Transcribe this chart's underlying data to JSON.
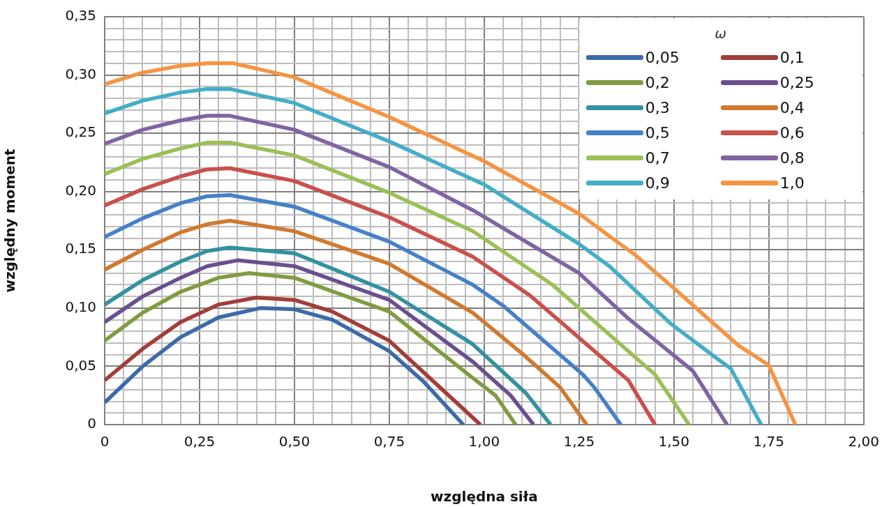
{
  "chart_data": {
    "type": "line",
    "xlabel": "względna siła",
    "ylabel": "względny moment",
    "legend_title": "ω",
    "legend": "top right",
    "grid": true,
    "marker": "none",
    "line_style": "solid",
    "xlim": [
      0,
      2
    ],
    "ylim": [
      0,
      0.35
    ],
    "xticks": [
      {
        "value": 0,
        "label": "0"
      },
      {
        "value": 0.05,
        "label": null
      },
      {
        "value": 0.1,
        "label": null
      },
      {
        "value": 0.15,
        "label": null
      },
      {
        "value": 0.2,
        "label": null
      },
      {
        "value": 0.25,
        "label": "0,25"
      },
      {
        "value": 0.3,
        "label": null
      },
      {
        "value": 0.35,
        "label": null
      },
      {
        "value": 0.4,
        "label": null
      },
      {
        "value": 0.45,
        "label": null
      },
      {
        "value": 0.5,
        "label": "0,50"
      },
      {
        "value": 0.55,
        "label": null
      },
      {
        "value": 0.6,
        "label": null
      },
      {
        "value": 0.65,
        "label": null
      },
      {
        "value": 0.7,
        "label": null
      },
      {
        "value": 0.75,
        "label": "0,75"
      },
      {
        "value": 0.8,
        "label": null
      },
      {
        "value": 0.85,
        "label": null
      },
      {
        "value": 0.9,
        "label": null
      },
      {
        "value": 0.95,
        "label": null
      },
      {
        "value": 1,
        "label": "1,00"
      },
      {
        "value": 1.05,
        "label": null
      },
      {
        "value": 1.1,
        "label": null
      },
      {
        "value": 1.15,
        "label": null
      },
      {
        "value": 1.2,
        "label": null
      },
      {
        "value": 1.25,
        "label": "1,25"
      },
      {
        "value": 1.3,
        "label": null
      },
      {
        "value": 1.35,
        "label": null
      },
      {
        "value": 1.4,
        "label": null
      },
      {
        "value": 1.45,
        "label": null
      },
      {
        "value": 1.5,
        "label": "1,50"
      },
      {
        "value": 1.55,
        "label": null
      },
      {
        "value": 1.6,
        "label": null
      },
      {
        "value": 1.65,
        "label": null
      },
      {
        "value": 1.7,
        "label": null
      },
      {
        "value": 1.75,
        "label": "1,75"
      },
      {
        "value": 1.8,
        "label": null
      },
      {
        "value": 1.85,
        "label": null
      },
      {
        "value": 1.9,
        "label": null
      },
      {
        "value": 1.95,
        "label": null
      },
      {
        "value": 2,
        "label": "2,00"
      }
    ],
    "yticks": [
      {
        "value": 0,
        "label": "0"
      },
      {
        "value": 0.01,
        "label": null
      },
      {
        "value": 0.02,
        "label": null
      },
      {
        "value": 0.03,
        "label": null
      },
      {
        "value": 0.04,
        "label": null
      },
      {
        "value": 0.05,
        "label": "0,05"
      },
      {
        "value": 0.06,
        "label": null
      },
      {
        "value": 0.07,
        "label": null
      },
      {
        "value": 0.08,
        "label": null
      },
      {
        "value": 0.09,
        "label": null
      },
      {
        "value": 0.1,
        "label": "0,10"
      },
      {
        "value": 0.11,
        "label": null
      },
      {
        "value": 0.12,
        "label": null
      },
      {
        "value": 0.13,
        "label": null
      },
      {
        "value": 0.14,
        "label": null
      },
      {
        "value": 0.15,
        "label": "0,15"
      },
      {
        "value": 0.16,
        "label": null
      },
      {
        "value": 0.17,
        "label": null
      },
      {
        "value": 0.18,
        "label": null
      },
      {
        "value": 0.19,
        "label": null
      },
      {
        "value": 0.2,
        "label": "0,20"
      },
      {
        "value": 0.21,
        "label": null
      },
      {
        "value": 0.22,
        "label": null
      },
      {
        "value": 0.23,
        "label": null
      },
      {
        "value": 0.24,
        "label": null
      },
      {
        "value": 0.25,
        "label": "0,25"
      },
      {
        "value": 0.26,
        "label": null
      },
      {
        "value": 0.27,
        "label": null
      },
      {
        "value": 0.28,
        "label": null
      },
      {
        "value": 0.29,
        "label": null
      },
      {
        "value": 0.3,
        "label": "0,30"
      },
      {
        "value": 0.31,
        "label": null
      },
      {
        "value": 0.32,
        "label": null
      },
      {
        "value": 0.33,
        "label": null
      },
      {
        "value": 0.34,
        "label": null
      },
      {
        "value": 0.35,
        "label": "0,35"
      }
    ],
    "series": [
      {
        "name": "0,05",
        "color": "#3d6aa8",
        "x": [
          0,
          0.1,
          0.2,
          0.3,
          0.41,
          0.5,
          0.6,
          0.75,
          0.84,
          0.945
        ],
        "values": [
          0.019,
          0.05,
          0.075,
          0.092,
          0.1,
          0.099,
          0.09,
          0.063,
          0.037,
          0
        ]
      },
      {
        "name": "0,1",
        "color": "#a33d3a",
        "x": [
          0,
          0.1,
          0.2,
          0.3,
          0.4,
          0.5,
          0.6,
          0.75,
          0.9,
          0.99
        ],
        "values": [
          0.038,
          0.065,
          0.088,
          0.103,
          0.109,
          0.107,
          0.097,
          0.072,
          0.027,
          0
        ]
      },
      {
        "name": "0,2",
        "color": "#7f9c3f",
        "x": [
          0,
          0.1,
          0.2,
          0.3,
          0.38,
          0.5,
          0.75,
          0.97,
          1.03,
          1.083
        ],
        "values": [
          0.072,
          0.096,
          0.114,
          0.126,
          0.13,
          0.126,
          0.097,
          0.04,
          0.025,
          0
        ]
      },
      {
        "name": "0,25",
        "color": "#6a4f8f",
        "x": [
          0,
          0.1,
          0.2,
          0.27,
          0.35,
          0.5,
          0.75,
          0.97,
          1.07,
          1.13
        ],
        "values": [
          0.088,
          0.11,
          0.126,
          0.136,
          0.141,
          0.136,
          0.107,
          0.054,
          0.025,
          0
        ]
      },
      {
        "name": "0,3",
        "color": "#34919f",
        "x": [
          0,
          0.1,
          0.2,
          0.27,
          0.33,
          0.5,
          0.75,
          0.97,
          1.11,
          1.175
        ],
        "values": [
          0.103,
          0.124,
          0.14,
          0.149,
          0.152,
          0.147,
          0.114,
          0.069,
          0.027,
          0
        ]
      },
      {
        "name": "0,4",
        "color": "#d07a2e",
        "x": [
          0,
          0.1,
          0.2,
          0.27,
          0.33,
          0.5,
          0.75,
          0.97,
          1.1,
          1.2,
          1.27
        ],
        "values": [
          0.133,
          0.15,
          0.165,
          0.172,
          0.175,
          0.166,
          0.138,
          0.096,
          0.061,
          0.032,
          0
        ]
      },
      {
        "name": "0,5",
        "color": "#4680c8",
        "x": [
          0,
          0.1,
          0.2,
          0.27,
          0.33,
          0.5,
          0.75,
          0.97,
          1.05,
          1.26,
          1.29,
          1.36
        ],
        "values": [
          0.161,
          0.177,
          0.19,
          0.196,
          0.197,
          0.187,
          0.157,
          0.12,
          0.102,
          0.043,
          0.032,
          0
        ]
      },
      {
        "name": "0,6",
        "color": "#c9504c",
        "x": [
          0,
          0.1,
          0.2,
          0.27,
          0.33,
          0.5,
          0.75,
          0.97,
          1.12,
          1.33,
          1.38,
          1.45
        ],
        "values": [
          0.188,
          0.202,
          0.213,
          0.219,
          0.22,
          0.209,
          0.178,
          0.144,
          0.111,
          0.052,
          0.038,
          0
        ]
      },
      {
        "name": "0,7",
        "color": "#9bc057",
        "x": [
          0,
          0.1,
          0.2,
          0.27,
          0.33,
          0.5,
          0.75,
          0.97,
          1.18,
          1.25,
          1.45,
          1.54
        ],
        "values": [
          0.215,
          0.228,
          0.237,
          0.242,
          0.242,
          0.231,
          0.199,
          0.166,
          0.12,
          0.1,
          0.043,
          0
        ]
      },
      {
        "name": "0,8",
        "color": "#8064a2",
        "x": [
          0,
          0.1,
          0.2,
          0.27,
          0.33,
          0.5,
          0.75,
          0.97,
          1.25,
          1.38,
          1.52,
          1.55,
          1.64
        ],
        "values": [
          0.241,
          0.253,
          0.261,
          0.265,
          0.265,
          0.253,
          0.221,
          0.184,
          0.13,
          0.091,
          0.054,
          0.046,
          0
        ]
      },
      {
        "name": "0,9",
        "color": "#44adc8",
        "x": [
          0,
          0.1,
          0.2,
          0.27,
          0.33,
          0.5,
          0.75,
          1,
          1.25,
          1.33,
          1.49,
          1.6,
          1.65,
          1.73
        ],
        "values": [
          0.267,
          0.278,
          0.285,
          0.288,
          0.288,
          0.276,
          0.243,
          0.206,
          0.155,
          0.136,
          0.087,
          0.06,
          0.048,
          0
        ]
      },
      {
        "name": "1,0",
        "color": "#f59443",
        "x": [
          0,
          0.1,
          0.2,
          0.27,
          0.34,
          0.5,
          0.75,
          1,
          1.25,
          1.4,
          1.5,
          1.6,
          1.67,
          1.75,
          1.82
        ],
        "values": [
          0.292,
          0.302,
          0.308,
          0.31,
          0.31,
          0.298,
          0.264,
          0.226,
          0.181,
          0.145,
          0.117,
          0.088,
          0.068,
          0.051,
          0
        ]
      }
    ]
  }
}
